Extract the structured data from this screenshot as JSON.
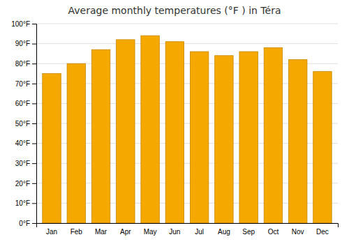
{
  "chart_data": {
    "type": "bar",
    "title": "Average monthly temperatures (°F ) in Téra",
    "categories": [
      "Jan",
      "Feb",
      "Mar",
      "Apr",
      "May",
      "Jun",
      "Jul",
      "Aug",
      "Sep",
      "Oct",
      "Nov",
      "Dec"
    ],
    "values": [
      75,
      80,
      87,
      92,
      94,
      91,
      86,
      84,
      86,
      88,
      82,
      76
    ],
    "color": "#F5A800",
    "ylim": [
      0,
      100
    ],
    "yticks": [
      {
        "value": 0,
        "label": "0°F"
      },
      {
        "value": 10,
        "label": "10°F"
      },
      {
        "value": 20,
        "label": "20°F"
      },
      {
        "value": 30,
        "label": "30°F"
      },
      {
        "value": 40,
        "label": "40°F"
      },
      {
        "value": 50,
        "label": "50°F"
      },
      {
        "value": 60,
        "label": "60°F"
      },
      {
        "value": 70,
        "label": "70°F"
      },
      {
        "value": 80,
        "label": "80°F"
      },
      {
        "value": 90,
        "label": "90°F"
      },
      {
        "value": 100,
        "label": "100°F"
      }
    ],
    "grid": true
  }
}
